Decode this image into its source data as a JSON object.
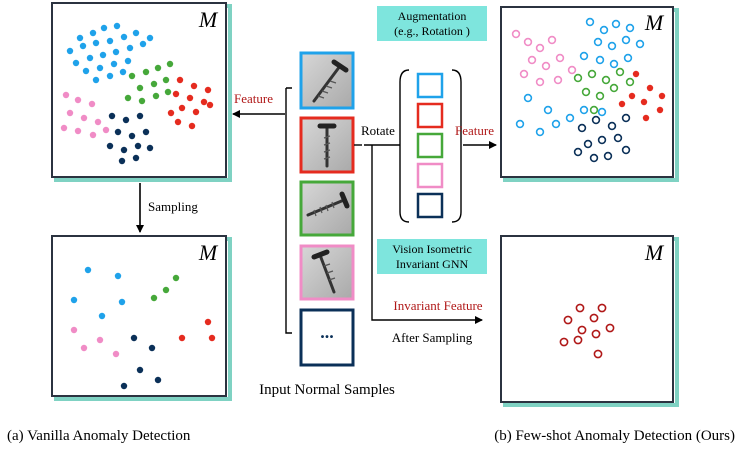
{
  "manifold_symbol": "M",
  "labels": {
    "feature_left": "Feature",
    "sampling": "Sampling",
    "rotate": "Rotate",
    "feature_right": "Feature",
    "augmentation_line1": "Augmentation",
    "augmentation_line2": "(e.g., Rotation )",
    "gnn_line1": "Vision Isometric",
    "gnn_line2": "Invariant GNN",
    "invariant_feature": "Invariant Feature",
    "after_sampling": "After Sampling",
    "input_normal_samples": "Input Normal Samples",
    "ellipsis": "...",
    "caption_a": "(a) Vanilla Anomaly Detection",
    "caption_b": "(b) Few-shot Anomaly Detection (Ours)"
  },
  "colors": {
    "blue": "#1fa2ea",
    "green": "#46a83a",
    "red": "#e52b1f",
    "pink": "#f08cc6",
    "navy": "#0b3058",
    "dark_red": "#b01818",
    "box_border": "#2b3340",
    "box_shadow": "#7fd2c3",
    "highlight": "#7ee5dd"
  },
  "icons": [
    "screw-image",
    "arrow",
    "bracket"
  ]
}
